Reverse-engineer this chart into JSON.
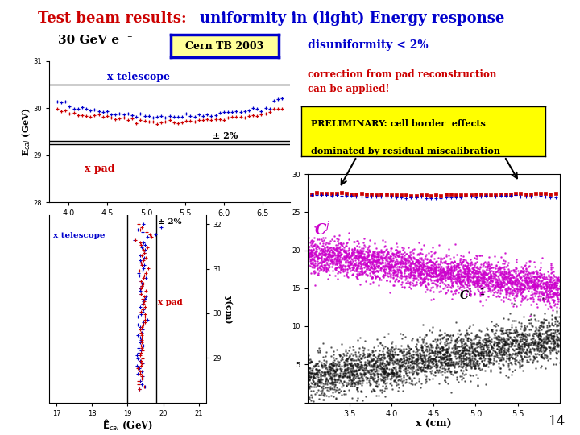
{
  "title_red": "Test beam results: ",
  "title_blue": "uniformity in (light) Energy response",
  "subtitle": "30 GeV e",
  "cern_tb_label": "Cern TB 2003",
  "disuniformity_label": "disuniformity < 2%",
  "page_number": "14",
  "bg_color": "#ffffff",
  "blue_color": "#0000cc",
  "red_color": "#cc0000",
  "magenta_color": "#cc00cc",
  "yellow_bg": "#ffff00",
  "cern_box_bg": "#ffff99",
  "cern_box_border": "#0000cc"
}
